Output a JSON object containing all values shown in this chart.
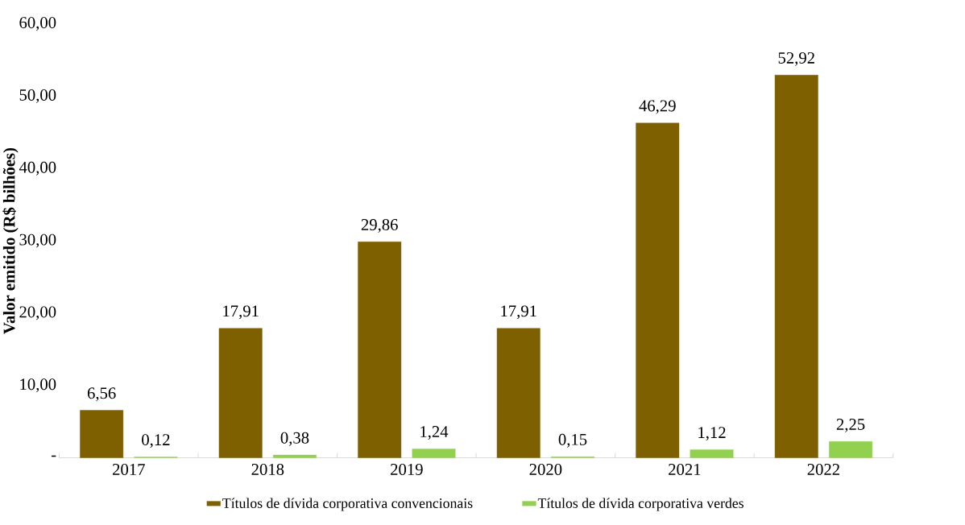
{
  "chart_data": {
    "type": "bar",
    "ylabel": "Valor emitido (R$ bilhões)",
    "categories": [
      "2017",
      "2018",
      "2019",
      "2020",
      "2021",
      "2022"
    ],
    "series": [
      {
        "name": "Títulos de dívida corporativa convencionais",
        "color": "#7f6000",
        "values": [
          6.56,
          17.91,
          29.86,
          17.91,
          46.29,
          52.92
        ],
        "value_labels": [
          "6,56",
          "17,91",
          "29,86",
          "17,91",
          "46,29",
          "52,92"
        ]
      },
      {
        "name": "Títulos de dívida corporativa verdes",
        "color": "#92d050",
        "values": [
          0.12,
          0.38,
          1.24,
          0.15,
          1.12,
          2.25
        ],
        "value_labels": [
          "0,12",
          "0,38",
          "1,24",
          "0,15",
          "1,12",
          "2,25"
        ]
      }
    ],
    "ylim": [
      0,
      60
    ],
    "yticks": [
      {
        "value": 0,
        "label": "-"
      },
      {
        "value": 10,
        "label": "10,00"
      },
      {
        "value": 20,
        "label": "20,00"
      },
      {
        "value": 30,
        "label": "30,00"
      },
      {
        "value": 40,
        "label": "40,00"
      },
      {
        "value": 50,
        "label": "50,00"
      },
      {
        "value": 60,
        "label": "60,00"
      }
    ],
    "grid": false,
    "legend": "bottom"
  }
}
